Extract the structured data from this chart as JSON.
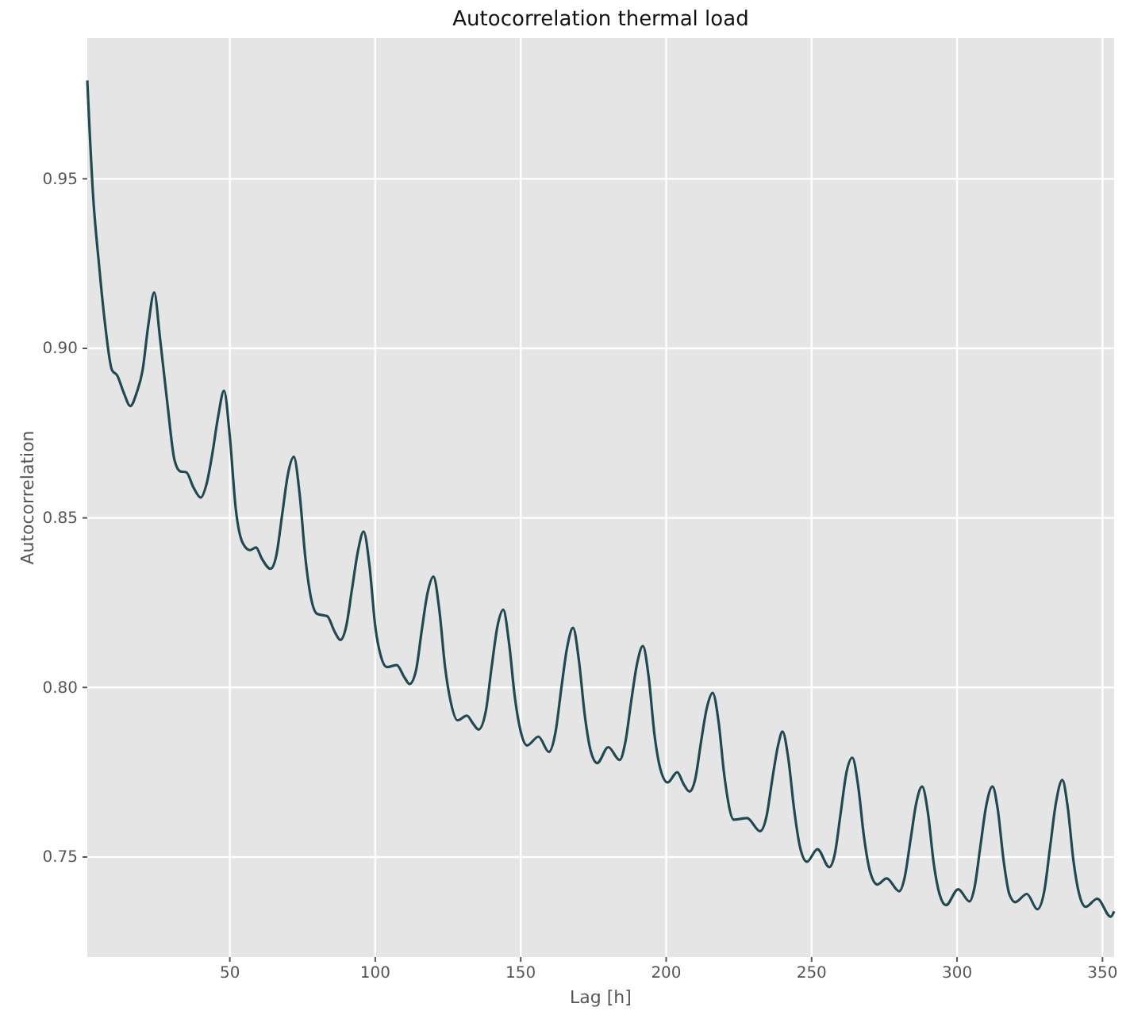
{
  "chart_data": {
    "type": "line",
    "title": "Autocorrelation thermal load",
    "xlabel": "Lag [h]",
    "ylabel": "Autocorrelation",
    "xlim": [
      1,
      354
    ],
    "ylim": [
      0.7205,
      0.9915
    ],
    "xticks": [
      50,
      100,
      150,
      200,
      250,
      300,
      350
    ],
    "yticks": [
      {
        "value": 0.75,
        "label": "0.75"
      },
      {
        "value": 0.8,
        "label": "0.80"
      },
      {
        "value": 0.85,
        "label": "0.85"
      },
      {
        "value": 0.9,
        "label": "0.90"
      },
      {
        "value": 0.95,
        "label": "0.95"
      }
    ],
    "grid": true,
    "marker": "none",
    "line_style": "solid",
    "series": [
      {
        "color": "#1f4a52",
        "x": [
          1,
          3,
          5,
          7,
          9.5,
          11.3,
          13.5,
          15.8,
          18,
          20,
          22,
          24,
          26,
          28.5,
          31,
          33,
          35,
          37.5,
          40,
          42,
          44,
          46,
          48,
          50,
          52,
          54.5,
          57,
          59,
          61,
          64,
          66,
          68,
          70,
          72,
          74,
          76,
          78,
          80,
          83.5,
          86,
          88,
          90,
          92,
          94,
          96,
          98,
          100,
          102,
          104,
          107.4,
          110,
          111.8,
          114,
          116,
          118,
          120,
          122,
          124,
          126,
          128.3,
          131.5,
          133.5,
          135.5,
          138,
          140,
          142,
          144,
          146,
          148,
          150,
          152.2,
          156.1,
          159.7,
          162,
          164,
          166,
          168,
          170,
          172,
          174,
          176.3,
          180.1,
          184,
          186,
          188,
          190,
          192,
          194,
          196,
          198,
          200.5,
          203.8,
          206,
          208,
          210,
          212,
          214,
          216,
          218,
          220,
          223.3,
          227.8,
          232.3,
          234.5,
          236.5,
          238.5,
          240,
          242,
          244,
          246,
          248.4,
          252,
          256.1,
          258,
          260,
          262,
          264,
          266,
          268,
          270,
          272.6,
          275.8,
          280.1,
          282,
          284,
          286,
          288,
          290,
          292,
          294,
          296.2,
          300.4,
          304.3,
          306,
          308,
          310,
          312.2,
          314,
          316,
          318,
          320,
          324,
          327.6,
          330,
          332,
          334,
          336.2,
          338,
          340,
          342,
          344.2,
          348.2,
          352.8,
          354
        ],
        "values": [
          0.979,
          0.945,
          0.925,
          0.908,
          0.8936,
          0.892,
          0.887,
          0.883,
          0.887,
          0.8935,
          0.907,
          0.9165,
          0.903,
          0.884,
          0.867,
          0.8637,
          0.8635,
          0.859,
          0.856,
          0.86,
          0.869,
          0.88,
          0.8875,
          0.874,
          0.853,
          0.8425,
          0.8405,
          0.8413,
          0.838,
          0.835,
          0.839,
          0.851,
          0.863,
          0.868,
          0.857,
          0.838,
          0.826,
          0.8217,
          0.821,
          0.8165,
          0.814,
          0.818,
          0.829,
          0.84,
          0.846,
          0.836,
          0.818,
          0.809,
          0.806,
          0.8066,
          0.803,
          0.801,
          0.805,
          0.817,
          0.828,
          0.8327,
          0.823,
          0.806,
          0.7955,
          0.7903,
          0.7917,
          0.7895,
          0.7876,
          0.793,
          0.806,
          0.818,
          0.8229,
          0.813,
          0.797,
          0.787,
          0.7829,
          0.7855,
          0.781,
          0.787,
          0.8,
          0.812,
          0.8176,
          0.808,
          0.792,
          0.7815,
          0.7777,
          0.7824,
          0.7786,
          0.784,
          0.796,
          0.807,
          0.8122,
          0.803,
          0.786,
          0.776,
          0.772,
          0.775,
          0.7715,
          0.7693,
          0.773,
          0.784,
          0.794,
          0.7984,
          0.79,
          0.774,
          0.761,
          0.7615,
          0.7576,
          0.762,
          0.773,
          0.783,
          0.787,
          0.779,
          0.764,
          0.753,
          0.7486,
          0.7523,
          0.747,
          0.751,
          0.763,
          0.775,
          0.7793,
          0.771,
          0.756,
          0.746,
          0.7419,
          0.7437,
          0.7399,
          0.744,
          0.755,
          0.766,
          0.7708,
          0.763,
          0.748,
          0.739,
          0.7358,
          0.7405,
          0.7369,
          0.741,
          0.753,
          0.765,
          0.7708,
          0.764,
          0.749,
          0.739,
          0.7367,
          0.7391,
          0.7346,
          0.74,
          0.753,
          0.766,
          0.7727,
          0.765,
          0.749,
          0.739,
          0.7353,
          0.7377,
          0.7324,
          0.734
        ]
      }
    ]
  }
}
